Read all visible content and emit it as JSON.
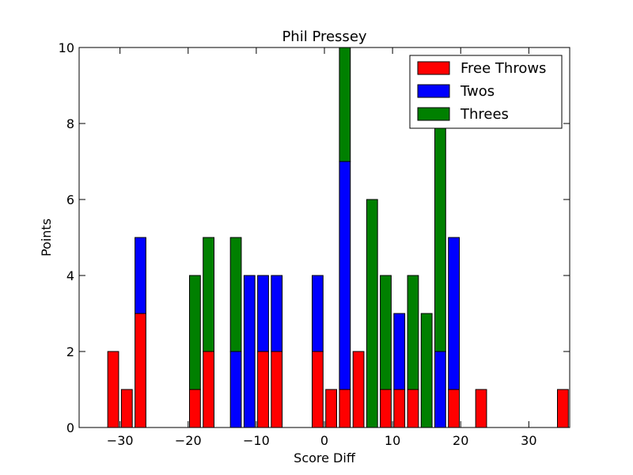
{
  "chart_data": {
    "type": "bar",
    "stacked": true,
    "title": "Phil Pressey",
    "xlabel": "Score Diff",
    "ylabel": "Points",
    "xlim": [
      -36,
      36
    ],
    "ylim": [
      0,
      10
    ],
    "xticks": [
      -30,
      -20,
      -10,
      0,
      10,
      20,
      30
    ],
    "yticks": [
      0,
      2,
      4,
      6,
      8,
      10
    ],
    "x": [
      -35,
      -33,
      -31,
      -29,
      -27,
      -25,
      -23,
      -21,
      -19,
      -17,
      -15,
      -13,
      -11,
      -9,
      -7,
      -5,
      -3,
      -1,
      1,
      3,
      5,
      7,
      9,
      11,
      13,
      15,
      17,
      19,
      21,
      23,
      25,
      27,
      29,
      31,
      33,
      35
    ],
    "series": [
      {
        "name": "Free Throws",
        "color": "#ff0000",
        "values": [
          0,
          0,
          2,
          1,
          3,
          0,
          0,
          0,
          1,
          2,
          0,
          0,
          0,
          2,
          2,
          0,
          0,
          2,
          1,
          1,
          2,
          0,
          1,
          1,
          1,
          0,
          0,
          1,
          0,
          1,
          0,
          0,
          0,
          0,
          0,
          1
        ]
      },
      {
        "name": "Twos",
        "color": "#0000ff",
        "values": [
          0,
          0,
          0,
          0,
          2,
          0,
          0,
          0,
          0,
          0,
          0,
          2,
          4,
          2,
          2,
          0,
          0,
          2,
          0,
          6,
          0,
          0,
          0,
          2,
          0,
          0,
          2,
          4,
          0,
          0,
          0,
          0,
          0,
          0,
          0,
          0
        ]
      },
      {
        "name": "Threes",
        "color": "#008000",
        "values": [
          0,
          0,
          0,
          0,
          0,
          0,
          0,
          0,
          3,
          3,
          0,
          3,
          0,
          0,
          0,
          0,
          0,
          0,
          0,
          3,
          0,
          6,
          3,
          0,
          3,
          3,
          6,
          0,
          0,
          0,
          0,
          0,
          0,
          0,
          0,
          0
        ]
      }
    ],
    "legend": {
      "position": "top-right"
    },
    "grid": false
  }
}
